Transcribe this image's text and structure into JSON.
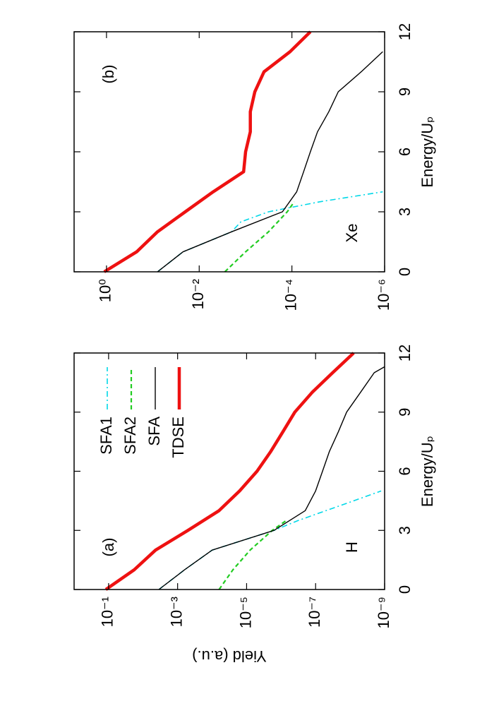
{
  "chart_data": [
    {
      "type": "line",
      "annotations": [
        "(a)",
        "H"
      ],
      "x_label": "Energy/Uₚ",
      "y_label": "Yield (a.u.)",
      "xlim": [
        0,
        12
      ],
      "xticks": [
        0,
        3,
        6,
        9,
        12
      ],
      "ylim": [
        1e-09,
        1
      ],
      "log_y": true,
      "yticks": [
        {
          "value": 0.1,
          "label": "10⁻¹"
        },
        {
          "value": 0.001,
          "label": "10⁻³"
        },
        {
          "value": 1e-05,
          "label": "10⁻⁵"
        },
        {
          "value": 1e-07,
          "label": "10⁻⁷"
        },
        {
          "value": 1e-09,
          "label": "10⁻⁹"
        }
      ],
      "legend": "top-right",
      "series": [
        {
          "name": "SFA1",
          "color": "#00d8e8",
          "dash": "dash-dot",
          "x": [
            0,
            1,
            2,
            3,
            3.5,
            4,
            4.5,
            5
          ],
          "values": [
            0.0035,
            0.00063,
            0.0001,
            1.6e-06,
            3.2e-07,
            5e-08,
            7.9e-09,
            1.26e-09
          ]
        },
        {
          "name": "SFA2",
          "color": "#22cc22",
          "dash": "dashed",
          "x": [
            0,
            1,
            2,
            3,
            3.5
          ],
          "values": [
            6.3e-05,
            2.5e-05,
            7.9e-06,
            1.8e-06,
            7.1e-07
          ]
        },
        {
          "name": "SFA",
          "color": "#000000",
          "dash": "solid",
          "x": [
            0,
            1,
            2,
            3,
            4,
            5,
            6,
            7,
            8,
            9,
            10,
            11,
            11.3
          ],
          "values": [
            0.0035,
            0.00063,
            0.0001,
            1.6e-06,
            2e-07,
            1e-07,
            6.3e-08,
            4e-08,
            2.2e-08,
            1.26e-08,
            5e-09,
            2e-09,
            1e-09
          ]
        },
        {
          "name": "TDSE",
          "color": "#ee1111",
          "dash": "thick",
          "x": [
            0,
            1,
            2,
            3,
            4,
            5,
            6,
            7,
            8,
            9,
            10,
            11,
            12
          ],
          "values": [
            0.12,
            0.0182,
            0.00437,
            0.0005,
            6.3e-05,
            1.6e-05,
            5e-06,
            2e-06,
            8.9e-07,
            4e-07,
            1.26e-07,
            3.2e-08,
            7.9e-09
          ]
        }
      ]
    },
    {
      "type": "line",
      "annotations": [
        "(b)",
        "Xe"
      ],
      "x_label": "Energy/Uₚ",
      "xlim": [
        0,
        12
      ],
      "xticks": [
        0,
        3,
        6,
        9,
        12
      ],
      "ylim": [
        1e-06,
        5
      ],
      "log_y": true,
      "yticks": [
        {
          "value": 1,
          "label": "10⁰"
        },
        {
          "value": 0.01,
          "label": "10⁻²"
        },
        {
          "value": 0.0001,
          "label": "10⁻⁴"
        },
        {
          "value": 1e-06,
          "label": "10⁻⁶"
        }
      ],
      "series": [
        {
          "color": "#00d8e8",
          "dash": "dash-dot",
          "x": [
            0,
            1,
            2,
            2.5,
            3,
            3.5,
            4
          ],
          "values": [
            0.0794,
            0.0224,
            0.002,
            0.00126,
            0.00032,
            2.5e-05,
            1.1e-06
          ]
        },
        {
          "color": "#22cc22",
          "dash": "dashed",
          "x": [
            0,
            1,
            2,
            3,
            3.5
          ],
          "values": [
            0.0028,
            0.001,
            0.00032,
            0.000126,
            8.9e-05
          ]
        },
        {
          "color": "#000000",
          "dash": "solid",
          "x": [
            0,
            1,
            2,
            3,
            4,
            5,
            6,
            7,
            8,
            9,
            10,
            11
          ],
          "values": [
            0.0794,
            0.0224,
            0.002,
            0.00016,
            7.9e-05,
            5.6e-05,
            4e-05,
            2.8e-05,
            1.6e-05,
            1e-05,
            3.2e-06,
            1.1e-06
          ]
        },
        {
          "color": "#ee1111",
          "dash": "thick",
          "x": [
            0,
            1,
            2,
            3,
            4,
            5,
            6,
            7,
            8,
            9,
            10,
            11,
            12
          ],
          "values": [
            1.12,
            0.224,
            0.0794,
            0.02,
            0.005,
            0.0011,
            0.001,
            0.00079,
            0.00079,
            0.00063,
            0.0004,
            0.00011,
            4e-05
          ]
        }
      ]
    }
  ]
}
